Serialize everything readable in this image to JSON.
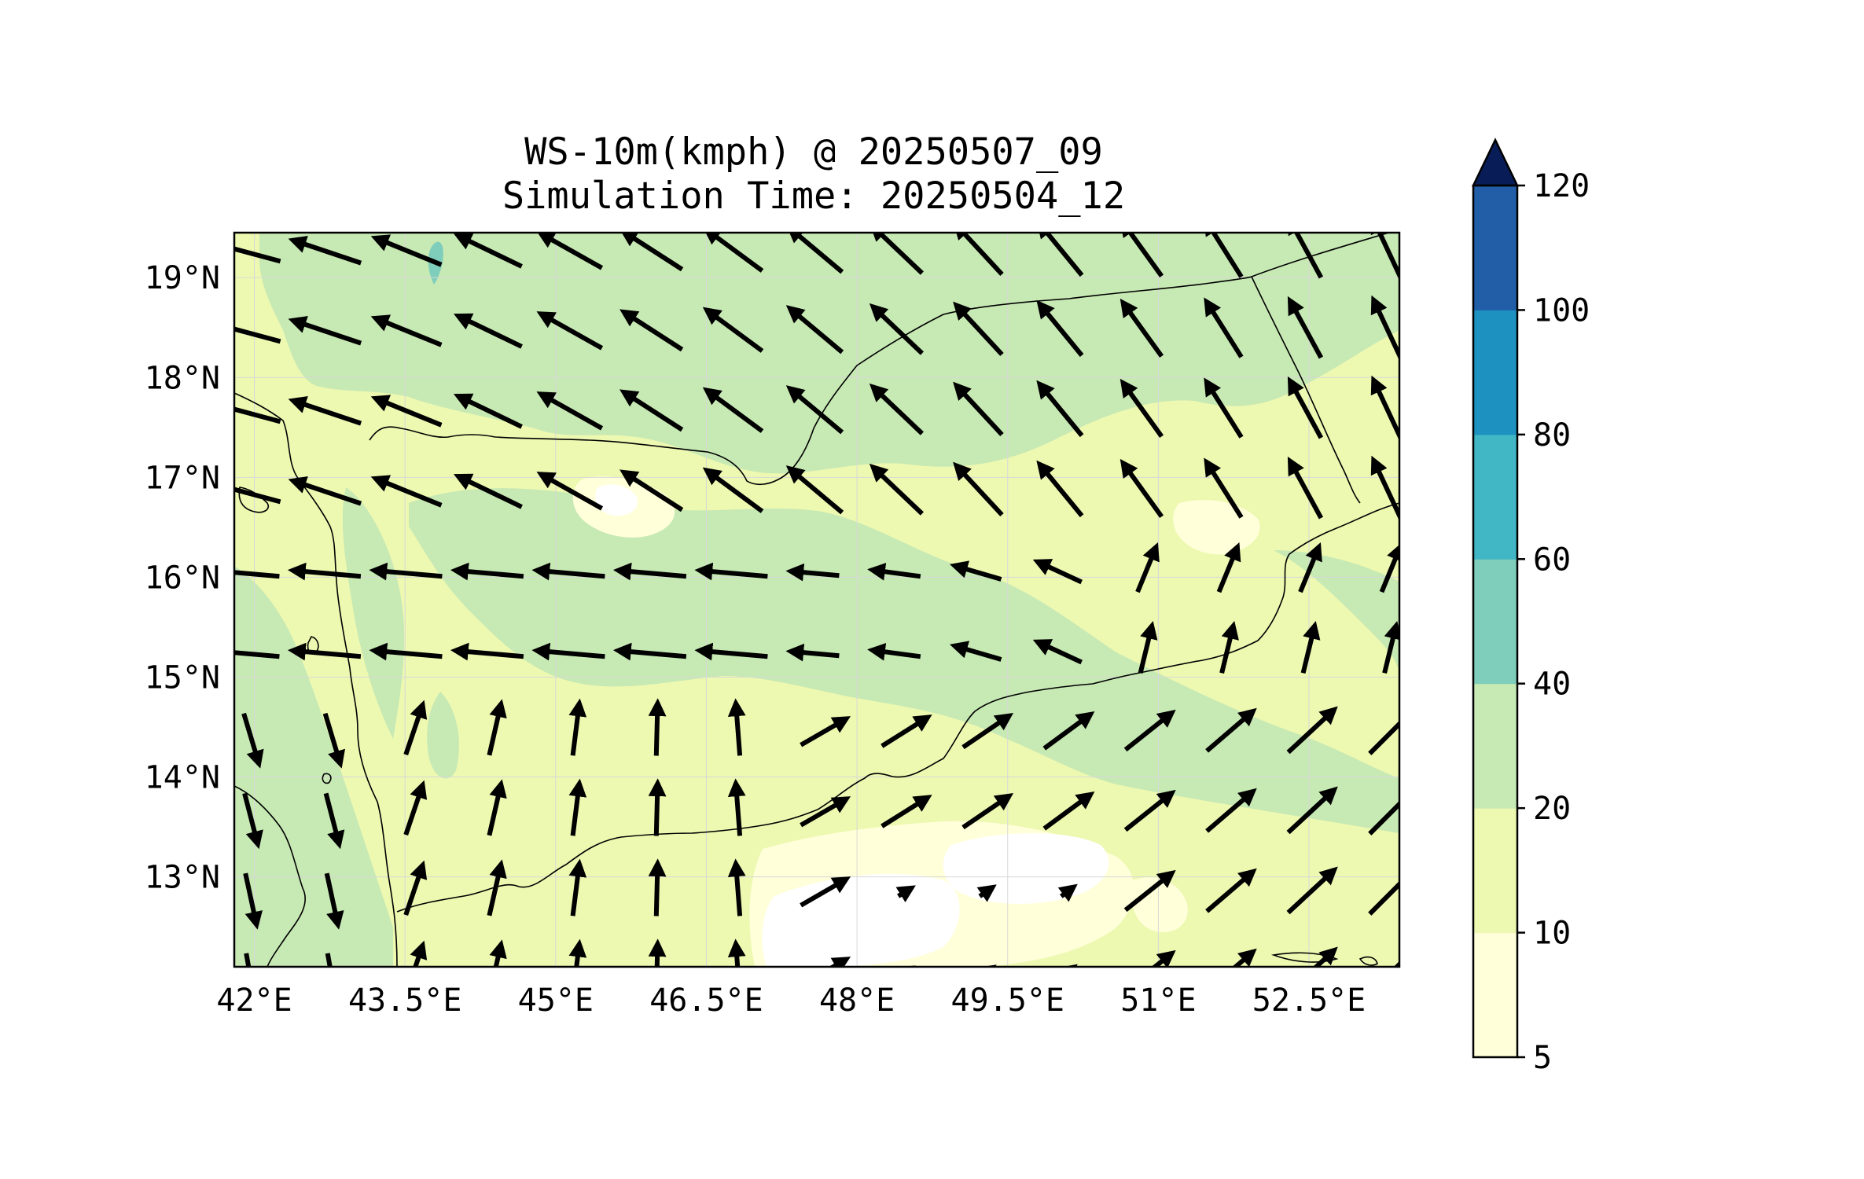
{
  "title": {
    "line1": "WS-10m(kmph) @ 20250507_09",
    "line2": "Simulation Time: 20250504_12"
  },
  "map": {
    "lon_range": [
      41.8,
      53.4
    ],
    "lat_range": [
      12.1,
      19.45
    ],
    "lon_ticks": [
      "42°E",
      "43.5°E",
      "45°E",
      "46.5°E",
      "48°E",
      "49.5°E",
      "51°E",
      "52.5°E"
    ],
    "lon_tick_values": [
      42,
      43.5,
      45,
      46.5,
      48,
      49.5,
      51,
      52.5
    ],
    "lat_ticks": [
      "19°N",
      "18°N",
      "17°N",
      "16°N",
      "15°N",
      "14°N",
      "13°N"
    ],
    "lat_tick_values": [
      19,
      18,
      17,
      16,
      15,
      14,
      13
    ],
    "gridlines": true,
    "filled_contour_variable": "10 m wind speed",
    "vector_field": "10 m wind arrows"
  },
  "colorbar": {
    "levels": [
      5,
      10,
      20,
      40,
      60,
      80,
      100,
      120
    ],
    "labels": [
      "5",
      "10",
      "20",
      "40",
      "60",
      "80",
      "100",
      "120"
    ],
    "colors": [
      "#ffffd9",
      "#edf8b1",
      "#c7e9b4",
      "#7fcdbb",
      "#41b6c4",
      "#1d91c0",
      "#225ea8",
      "#0c2c84"
    ],
    "extend": "max",
    "extend_color": "#081d58"
  }
}
